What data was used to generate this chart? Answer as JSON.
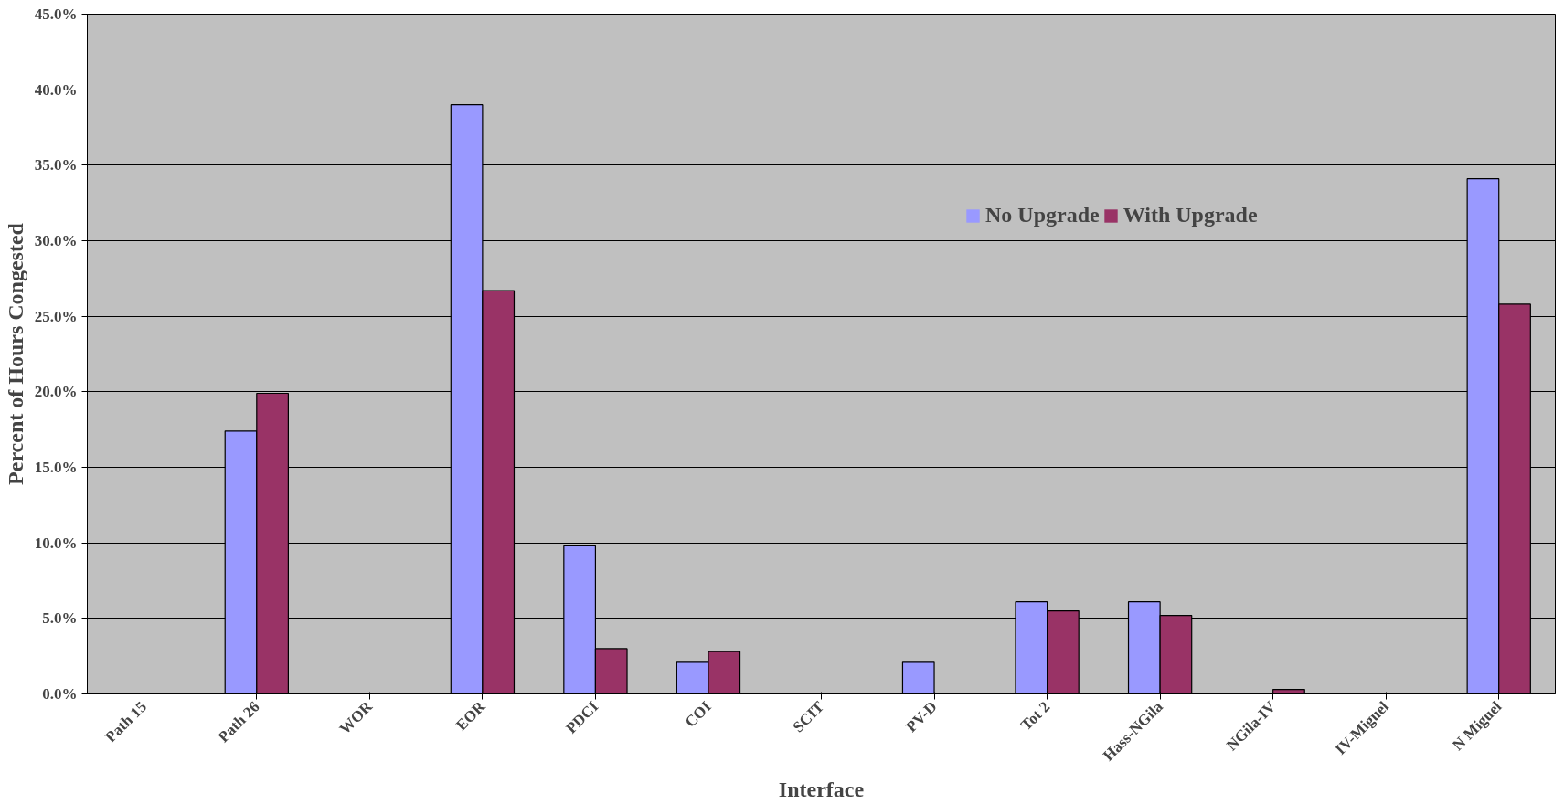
{
  "chart_data": {
    "type": "bar",
    "xlabel": "Interface",
    "ylabel": "Percent of Hours Congested",
    "categories": [
      "Path 15",
      "Path 26",
      "WOR",
      "EOR",
      "PDCI",
      "COI",
      "SCIT",
      "PV-D",
      "Tot 2",
      "Hass-NGila",
      "NGila-IV",
      "IV-Miguel",
      "N Miguel"
    ],
    "series": [
      {
        "name": "No Upgrade",
        "color": "#9999ff",
        "values": [
          0,
          17.4,
          0,
          39.0,
          9.8,
          2.1,
          0,
          2.1,
          6.1,
          6.1,
          0,
          0,
          34.1
        ]
      },
      {
        "name": "With Upgrade",
        "color": "#993366",
        "values": [
          0,
          19.9,
          0,
          26.7,
          3.0,
          2.8,
          0,
          0,
          5.5,
          5.2,
          0.3,
          0,
          25.8
        ]
      }
    ],
    "ylim": [
      0,
      45
    ],
    "yticks": [
      {
        "value": 0,
        "label": "0.0%"
      },
      {
        "value": 5,
        "label": "5.0%"
      },
      {
        "value": 10,
        "label": "10.0%"
      },
      {
        "value": 15,
        "label": "15.0%"
      },
      {
        "value": 20,
        "label": "20.0%"
      },
      {
        "value": 25,
        "label": "25.0%"
      },
      {
        "value": 30,
        "label": "30.0%"
      },
      {
        "value": 35,
        "label": "35.0%"
      },
      {
        "value": 40,
        "label": "40.0%"
      },
      {
        "value": 45,
        "label": "45.0%"
      }
    ],
    "grid": "y",
    "legend": "top right"
  }
}
